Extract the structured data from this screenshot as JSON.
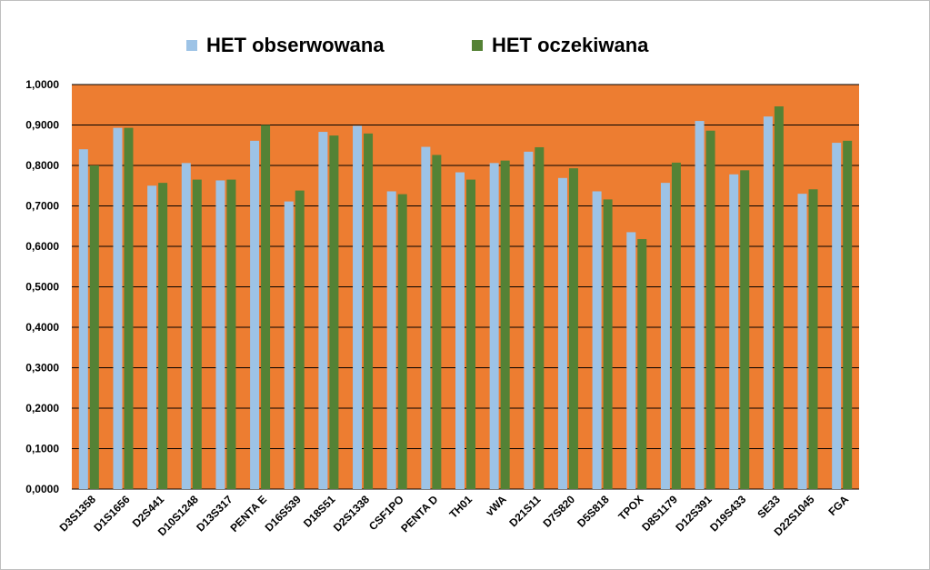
{
  "colors": {
    "plot_bg": "#ED7D31",
    "observed": "#9DC3E6",
    "expected": "#548235",
    "grid": "#000000"
  },
  "legend": {
    "observed_label": "HET obserwowana",
    "expected_label": "HET oczekiwana"
  },
  "chart_data": {
    "type": "bar",
    "title": "",
    "xlabel": "",
    "ylabel": "",
    "ylim": [
      0,
      1
    ],
    "y_ticks": [
      "0,0000",
      "0,1000",
      "0,2000",
      "0,3000",
      "0,4000",
      "0,5000",
      "0,6000",
      "0,7000",
      "0,8000",
      "0,9000",
      "1,0000"
    ],
    "grid": true,
    "legend_position": "top",
    "categories": [
      "D3S1358",
      "D1S1656",
      "D2S441",
      "D10S1248",
      "D13S317",
      "PENTA E",
      "D16S539",
      "D18S51",
      "D2S1338",
      "CSF1PO",
      "PENTA D",
      "TH01",
      "vWA",
      "D21S11",
      "D7S820",
      "D5S818",
      "TPOX",
      "D8S1179",
      "D12S391",
      "D19S433",
      "SE33",
      "D22S1045",
      "FGA"
    ],
    "series": [
      {
        "name": "HET obserwowana",
        "values": [
          0.84,
          0.893,
          0.75,
          0.806,
          0.763,
          0.861,
          0.711,
          0.883,
          0.898,
          0.736,
          0.846,
          0.783,
          0.806,
          0.834,
          0.769,
          0.736,
          0.635,
          0.757,
          0.91,
          0.778,
          0.921,
          0.73,
          0.856
        ]
      },
      {
        "name": "HET oczekiwana",
        "values": [
          0.8,
          0.893,
          0.757,
          0.765,
          0.765,
          0.9,
          0.738,
          0.874,
          0.879,
          0.729,
          0.826,
          0.765,
          0.812,
          0.845,
          0.793,
          0.716,
          0.618,
          0.807,
          0.886,
          0.788,
          0.946,
          0.741,
          0.861
        ]
      }
    ]
  }
}
